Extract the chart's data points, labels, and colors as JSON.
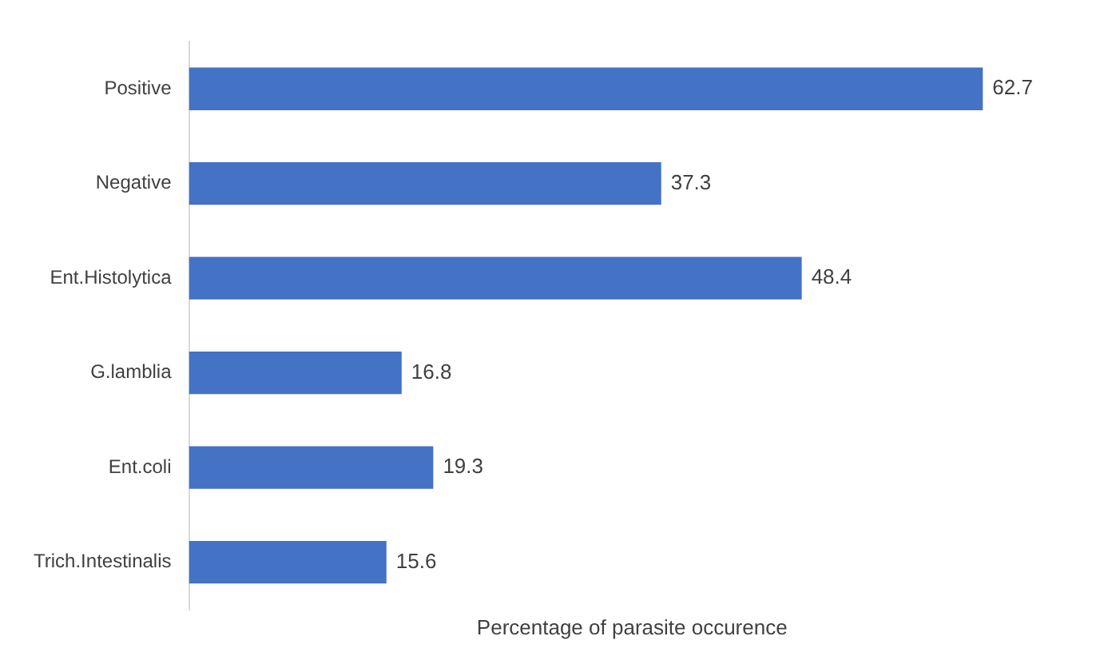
{
  "chart_data": {
    "type": "bar",
    "orientation": "horizontal",
    "xlabel": "Percentage of parasite occurence",
    "categories": [
      "Positive",
      "Negative",
      "Ent.Histolytica",
      "G.lamblia",
      "Ent.coli",
      "Trich.Intestinalis"
    ],
    "values": [
      62.7,
      37.3,
      48.4,
      16.8,
      19.3,
      15.6
    ],
    "color": "#4472c4",
    "data_labels": true,
    "tick_labels": "y",
    "grid": false,
    "legend": false
  }
}
